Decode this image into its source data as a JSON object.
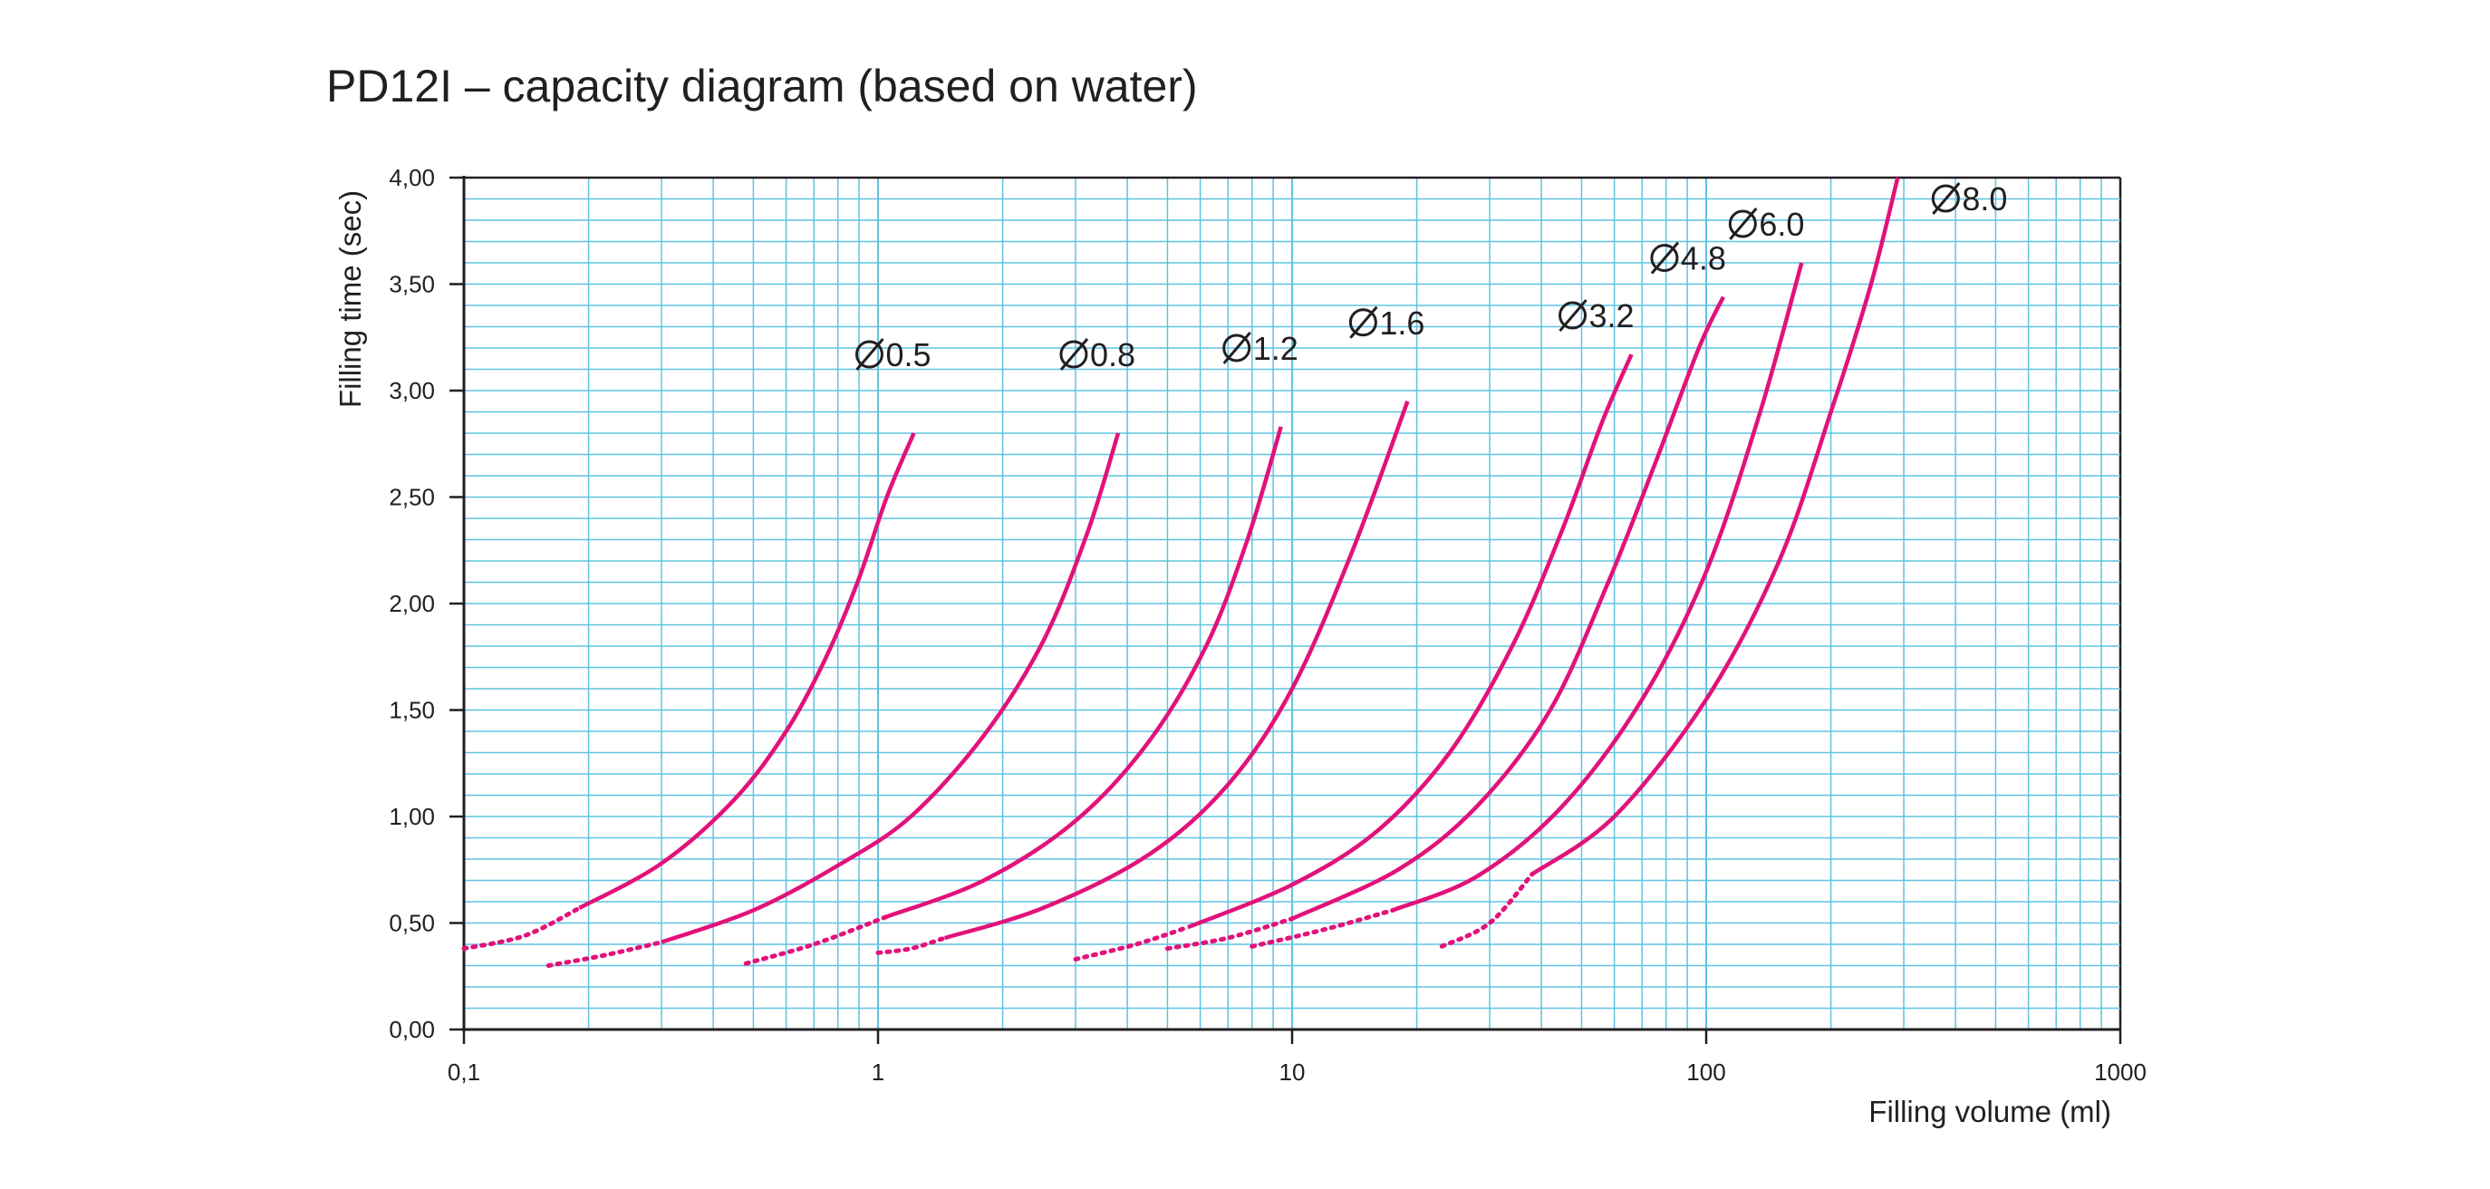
{
  "chart_data": {
    "type": "line",
    "title": "PD12I – capacity diagram (based on water)",
    "xlabel": "Filling volume (ml)",
    "ylabel": "Filling time (sec)",
    "xscale": "log",
    "xlim": [
      0.1,
      1000
    ],
    "ylim": [
      0,
      4
    ],
    "x_tick_labels": [
      "0,1",
      "1",
      "10",
      "100",
      "1000"
    ],
    "x_tick_values": [
      0.1,
      1,
      10,
      100,
      1000
    ],
    "y_tick_labels": [
      "0,00",
      "0,50",
      "1,00",
      "1,50",
      "2,00",
      "2,50",
      "3,00",
      "3,50",
      "4,00"
    ],
    "y_tick_values": [
      0,
      0.5,
      1,
      1.5,
      2,
      2.5,
      3,
      3.5,
      4
    ],
    "grid": true,
    "colors": {
      "curve": "#e2127a",
      "grid": "#5ec3e1",
      "axis": "#231f20"
    },
    "series": [
      {
        "name": "Ø0.5",
        "label": "0.5",
        "dotted": [
          [
            0.1,
            0.38
          ],
          [
            0.14,
            0.44
          ],
          [
            0.19,
            0.57
          ]
        ],
        "solid": [
          [
            0.19,
            0.57
          ],
          [
            0.3,
            0.78
          ],
          [
            0.45,
            1.08
          ],
          [
            0.6,
            1.4
          ],
          [
            0.75,
            1.75
          ],
          [
            0.9,
            2.12
          ],
          [
            1.05,
            2.5
          ],
          [
            1.22,
            2.8
          ]
        ]
      },
      {
        "name": "Ø0.8",
        "label": "0.8",
        "dotted": [
          [
            0.16,
            0.3
          ],
          [
            0.22,
            0.35
          ],
          [
            0.3,
            0.41
          ]
        ],
        "solid": [
          [
            0.3,
            0.41
          ],
          [
            0.5,
            0.56
          ],
          [
            0.8,
            0.77
          ],
          [
            1.2,
            1.0
          ],
          [
            1.8,
            1.38
          ],
          [
            2.5,
            1.82
          ],
          [
            3.2,
            2.33
          ],
          [
            3.8,
            2.8
          ]
        ]
      },
      {
        "name": "Ø1.2",
        "label": "1.2",
        "dotted": [
          [
            0.48,
            0.31
          ],
          [
            0.7,
            0.4
          ],
          [
            1.05,
            0.53
          ]
        ],
        "solid": [
          [
            1.05,
            0.53
          ],
          [
            1.8,
            0.7
          ],
          [
            3.0,
            0.98
          ],
          [
            4.5,
            1.35
          ],
          [
            6.2,
            1.8
          ],
          [
            7.8,
            2.3
          ],
          [
            9.4,
            2.83
          ]
        ]
      },
      {
        "name": "Ø1.6",
        "label": "1.6",
        "dotted": [
          [
            1.0,
            0.36
          ],
          [
            1.2,
            0.38
          ],
          [
            1.45,
            0.43
          ]
        ],
        "solid": [
          [
            1.45,
            0.43
          ],
          [
            2.5,
            0.57
          ],
          [
            4.5,
            0.82
          ],
          [
            7.0,
            1.15
          ],
          [
            10.0,
            1.6
          ],
          [
            14.0,
            2.25
          ],
          [
            19.0,
            2.95
          ]
        ]
      },
      {
        "name": "Ø3.2",
        "label": "3.2",
        "dotted": [
          [
            3.0,
            0.33
          ],
          [
            4.2,
            0.4
          ],
          [
            5.6,
            0.48
          ]
        ],
        "solid": [
          [
            5.6,
            0.48
          ],
          [
            10.0,
            0.68
          ],
          [
            16.0,
            0.93
          ],
          [
            24.0,
            1.3
          ],
          [
            34.0,
            1.8
          ],
          [
            45.0,
            2.35
          ],
          [
            56.0,
            2.85
          ],
          [
            66.0,
            3.17
          ]
        ]
      },
      {
        "name": "Ø4.8",
        "label": "4.8",
        "dotted": [
          [
            5.0,
            0.38
          ],
          [
            7.0,
            0.43
          ],
          [
            10.0,
            0.52
          ]
        ],
        "solid": [
          [
            10.0,
            0.52
          ],
          [
            18.0,
            0.75
          ],
          [
            28.0,
            1.05
          ],
          [
            42.0,
            1.5
          ],
          [
            58.0,
            2.1
          ],
          [
            75.0,
            2.65
          ],
          [
            96.0,
            3.2
          ],
          [
            110.0,
            3.44
          ]
        ]
      },
      {
        "name": "Ø6.0",
        "label": "6.0",
        "dotted": [
          [
            8.0,
            0.39
          ],
          [
            12.0,
            0.47
          ],
          [
            17.5,
            0.56
          ]
        ],
        "solid": [
          [
            17.5,
            0.56
          ],
          [
            28.0,
            0.72
          ],
          [
            45.0,
            1.05
          ],
          [
            70.0,
            1.55
          ],
          [
            100.0,
            2.15
          ],
          [
            135.0,
            2.9
          ],
          [
            170.0,
            3.6
          ]
        ]
      },
      {
        "name": "Ø8.0",
        "label": "8.0",
        "dotted": [
          [
            23.0,
            0.39
          ],
          [
            30.0,
            0.5
          ],
          [
            38.0,
            0.73
          ]
        ],
        "solid": [
          [
            38.0,
            0.73
          ],
          [
            60.0,
            1.0
          ],
          [
            100.0,
            1.55
          ],
          [
            150.0,
            2.2
          ],
          [
            200.0,
            2.9
          ],
          [
            250.0,
            3.5
          ],
          [
            290.0,
            4.0
          ]
        ]
      }
    ]
  }
}
